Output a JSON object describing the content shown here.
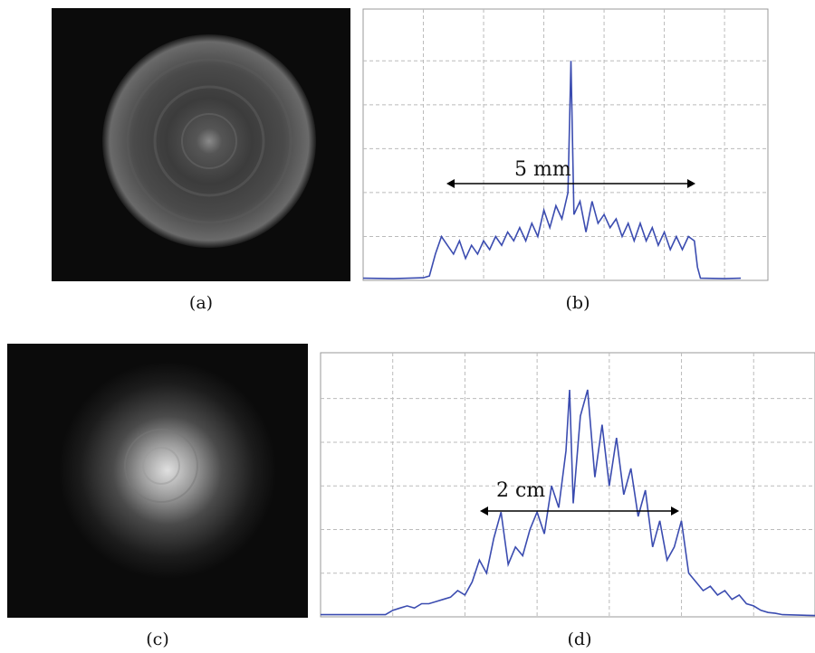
{
  "captions": [
    "(a)",
    "(b)",
    "(c)",
    "(d)"
  ],
  "chart_data": [
    {
      "type": "line",
      "annotation": "5 mm",
      "color": "#3b4cb0",
      "grid": true,
      "xlim": [
        0,
        6.72
      ],
      "ylim": [
        0,
        6.18
      ],
      "xticks": [
        1,
        2,
        3,
        4,
        5,
        6
      ],
      "yticks": [
        1,
        2,
        3,
        4,
        5
      ],
      "x": [
        0,
        0.5,
        1.0,
        1.1,
        1.2,
        1.3,
        1.4,
        1.5,
        1.6,
        1.7,
        1.8,
        1.9,
        2.0,
        2.1,
        2.2,
        2.3,
        2.4,
        2.5,
        2.6,
        2.7,
        2.8,
        2.9,
        3.0,
        3.1,
        3.2,
        3.3,
        3.4,
        3.45,
        3.5,
        3.6,
        3.7,
        3.8,
        3.9,
        4.0,
        4.1,
        4.2,
        4.3,
        4.4,
        4.5,
        4.6,
        4.7,
        4.8,
        4.9,
        5.0,
        5.1,
        5.2,
        5.3,
        5.4,
        5.5,
        5.55,
        5.6,
        6.0,
        6.27
      ],
      "values": [
        0.05,
        0.04,
        0.06,
        0.1,
        0.6,
        1.0,
        0.8,
        0.6,
        0.9,
        0.5,
        0.8,
        0.6,
        0.9,
        0.7,
        1.0,
        0.8,
        1.1,
        0.9,
        1.2,
        0.9,
        1.3,
        1.0,
        1.6,
        1.2,
        1.7,
        1.4,
        2.0,
        5.0,
        1.5,
        1.8,
        1.1,
        1.8,
        1.3,
        1.5,
        1.2,
        1.4,
        1.0,
        1.3,
        0.9,
        1.3,
        0.9,
        1.2,
        0.8,
        1.1,
        0.7,
        1.0,
        0.7,
        1.0,
        0.9,
        0.3,
        0.05,
        0.04,
        0.05
      ]
    },
    {
      "type": "line",
      "annotation": "2 cm",
      "color": "#3b4cb0",
      "grid": true,
      "xlim": [
        0,
        6.85
      ],
      "ylim": [
        0,
        6.05
      ],
      "xticks": [
        1,
        2,
        3,
        4,
        5,
        6
      ],
      "yticks": [
        1,
        2,
        3,
        4,
        5
      ],
      "x": [
        0,
        0.9,
        1.0,
        1.1,
        1.2,
        1.3,
        1.4,
        1.5,
        1.6,
        1.7,
        1.8,
        1.9,
        2.0,
        2.1,
        2.2,
        2.3,
        2.4,
        2.5,
        2.6,
        2.7,
        2.8,
        2.9,
        3.0,
        3.1,
        3.2,
        3.3,
        3.4,
        3.45,
        3.5,
        3.6,
        3.7,
        3.8,
        3.9,
        4.0,
        4.1,
        4.2,
        4.3,
        4.4,
        4.5,
        4.6,
        4.7,
        4.8,
        4.9,
        5.0,
        5.1,
        5.2,
        5.3,
        5.4,
        5.5,
        5.6,
        5.7,
        5.8,
        5.9,
        6.0,
        6.1,
        6.2,
        6.3,
        6.4,
        6.85
      ],
      "values": [
        0.05,
        0.05,
        0.15,
        0.2,
        0.25,
        0.2,
        0.3,
        0.3,
        0.35,
        0.4,
        0.45,
        0.6,
        0.5,
        0.8,
        1.3,
        1.0,
        1.8,
        2.4,
        1.2,
        1.6,
        1.4,
        2.0,
        2.4,
        1.9,
        3.0,
        2.5,
        3.8,
        5.2,
        2.6,
        4.6,
        5.2,
        3.2,
        4.4,
        3.0,
        4.1,
        2.8,
        3.4,
        2.3,
        2.9,
        1.6,
        2.2,
        1.3,
        1.6,
        2.2,
        1.0,
        0.8,
        0.6,
        0.7,
        0.5,
        0.6,
        0.4,
        0.5,
        0.3,
        0.25,
        0.15,
        0.1,
        0.08,
        0.05,
        0.03
      ]
    }
  ]
}
